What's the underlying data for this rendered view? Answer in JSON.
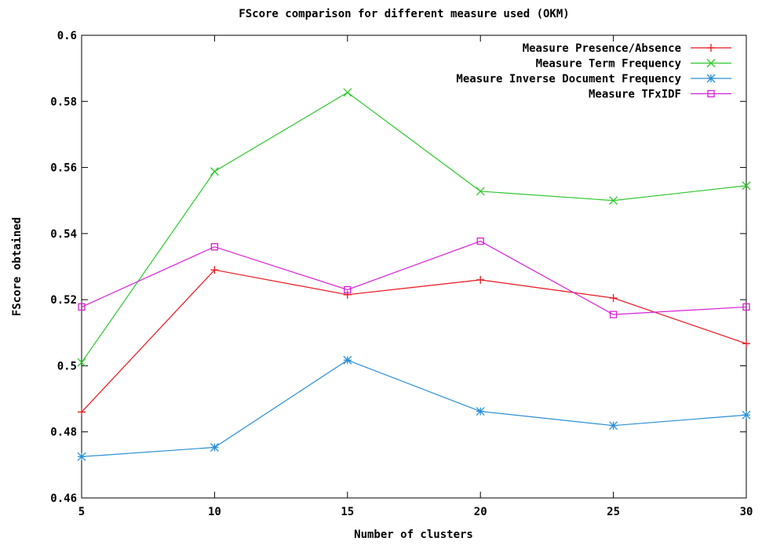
{
  "chart_data": {
    "type": "line",
    "title": "FScore comparison for different measure used (OKM)",
    "xlabel": "Number of clusters",
    "ylabel": "FScore obtained",
    "xlim": [
      5,
      30
    ],
    "ylim": [
      0.46,
      0.6
    ],
    "x_ticks": [
      "5",
      "10",
      "15",
      "20",
      "25",
      "30"
    ],
    "y_ticks": [
      "0.46",
      "0.48",
      "0.5",
      "0.52",
      "0.54",
      "0.56",
      "0.58",
      "0.6"
    ],
    "x": [
      5,
      10,
      15,
      20,
      25,
      30
    ],
    "grid": false,
    "legend_position": "top-right",
    "series": [
      {
        "name": "Measure Presence/Absence",
        "color": "#e8141c",
        "marker": "plus",
        "values": [
          0.486,
          0.529,
          0.5215,
          0.526,
          0.5205,
          0.5067
        ]
      },
      {
        "name": "Measure Term Frequency",
        "color": "#2dc82d",
        "marker": "cross",
        "values": [
          0.501,
          0.5588,
          0.5827,
          0.5528,
          0.55,
          0.5545
        ]
      },
      {
        "name": "Measure Inverse Document Frequency",
        "color": "#2a8fd6",
        "marker": "star",
        "values": [
          0.4725,
          0.4753,
          0.5017,
          0.4862,
          0.4819,
          0.4851
        ]
      },
      {
        "name": "Measure TFxIDF",
        "color": "#d61fd6",
        "marker": "square",
        "values": [
          0.5178,
          0.536,
          0.523,
          0.5377,
          0.5155,
          0.5178
        ]
      }
    ]
  }
}
